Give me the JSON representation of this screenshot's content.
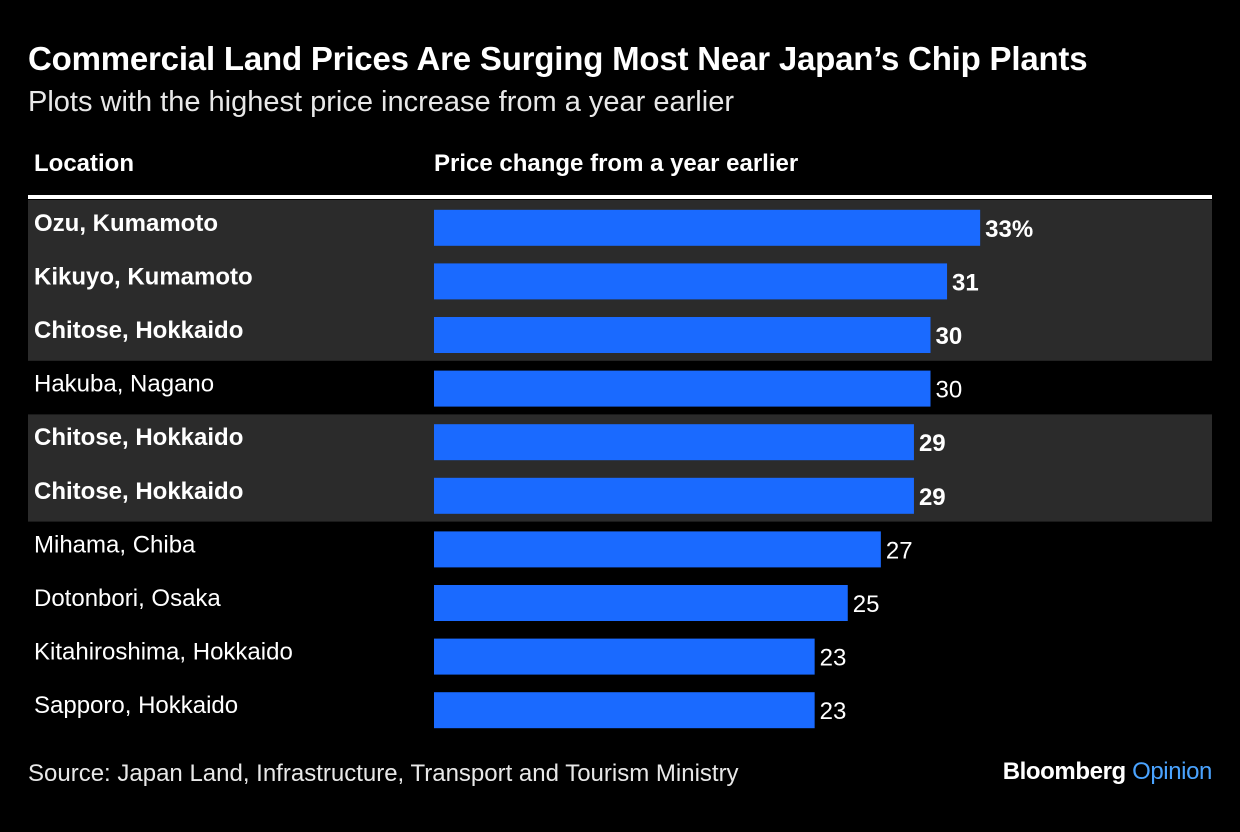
{
  "chart_data": {
    "type": "bar",
    "orientation": "horizontal",
    "title": "Commercial Land Prices Are Surging Most Near Japan’s Chip Plants",
    "subtitle": "Plots with the highest price increase from a year earlier",
    "columns": {
      "location": "Location",
      "value": "Price change from a year earlier"
    },
    "categories": [
      "Ozu, Kumamoto",
      "Kikuyo, Kumamoto",
      "Chitose, Hokkaido",
      "Hakuba, Nagano",
      "Chitose, Hokkaido",
      "Chitose, Hokkaido",
      "Mihama, Chiba",
      "Dotonbori, Osaka",
      "Kitahiroshima, Hokkaido",
      "Sapporo, Hokkaido"
    ],
    "values": [
      33,
      31,
      30,
      30,
      29,
      29,
      27,
      25,
      23,
      23
    ],
    "value_labels": [
      "33%",
      "31",
      "30",
      "30",
      "29",
      "29",
      "27",
      "25",
      "23",
      "23"
    ],
    "highlighted": [
      true,
      true,
      true,
      false,
      true,
      true,
      false,
      false,
      false,
      false
    ],
    "bar_color": "#1a6aff",
    "highlight_background": "#2b2b2b",
    "source": "Source: Japan Land, Infrastructure, Transport and Tourism Ministry",
    "brand": {
      "name": "Bloomberg",
      "suffix": "Opinion"
    }
  }
}
